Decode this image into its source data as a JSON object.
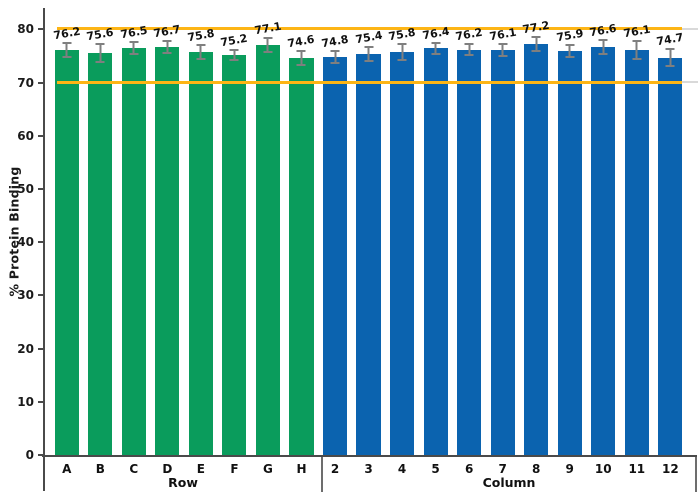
{
  "chart_data": {
    "type": "bar",
    "title": "",
    "ylabel": "% Protein Binding",
    "xlabel_groups": [
      "Row",
      "Column"
    ],
    "ylim": [
      0,
      80
    ],
    "yticks": [
      0,
      10,
      20,
      30,
      40,
      50,
      60,
      70,
      80
    ],
    "grid": "off",
    "legend": "none",
    "reference_lines": [
      {
        "y": 70,
        "color": "#fdb515"
      },
      {
        "y": 80,
        "color": "#fdb515"
      }
    ],
    "groups": [
      {
        "label": "Row",
        "color": "#0a9c5c",
        "categories": [
          "A",
          "B",
          "C",
          "D",
          "E",
          "F",
          "G",
          "H"
        ],
        "values": [
          76.2,
          75.6,
          76.5,
          76.7,
          75.8,
          75.2,
          77.1,
          74.6
        ],
        "errors": [
          1.5,
          1.9,
          1.3,
          1.3,
          1.5,
          1.1,
          1.5,
          1.5
        ]
      },
      {
        "label": "Column",
        "color": "#0b63af",
        "categories": [
          "2",
          "3",
          "4",
          "5",
          "6",
          "7",
          "8",
          "9",
          "10",
          "11",
          "12"
        ],
        "values": [
          74.8,
          75.4,
          75.8,
          76.4,
          76.2,
          76.1,
          77.2,
          75.9,
          76.6,
          76.1,
          74.7
        ],
        "errors": [
          1.3,
          1.5,
          1.7,
          1.3,
          1.3,
          1.3,
          1.5,
          1.3,
          1.5,
          1.9,
          1.7
        ]
      }
    ],
    "colors": {
      "row_bars": "#0a9c5c",
      "column_bars": "#0b63af",
      "reference_line": "#fdb515",
      "error_bar": "#7f7f7f",
      "axis": "#4a4a4a",
      "text": "#111111",
      "background": "#ffffff"
    }
  }
}
